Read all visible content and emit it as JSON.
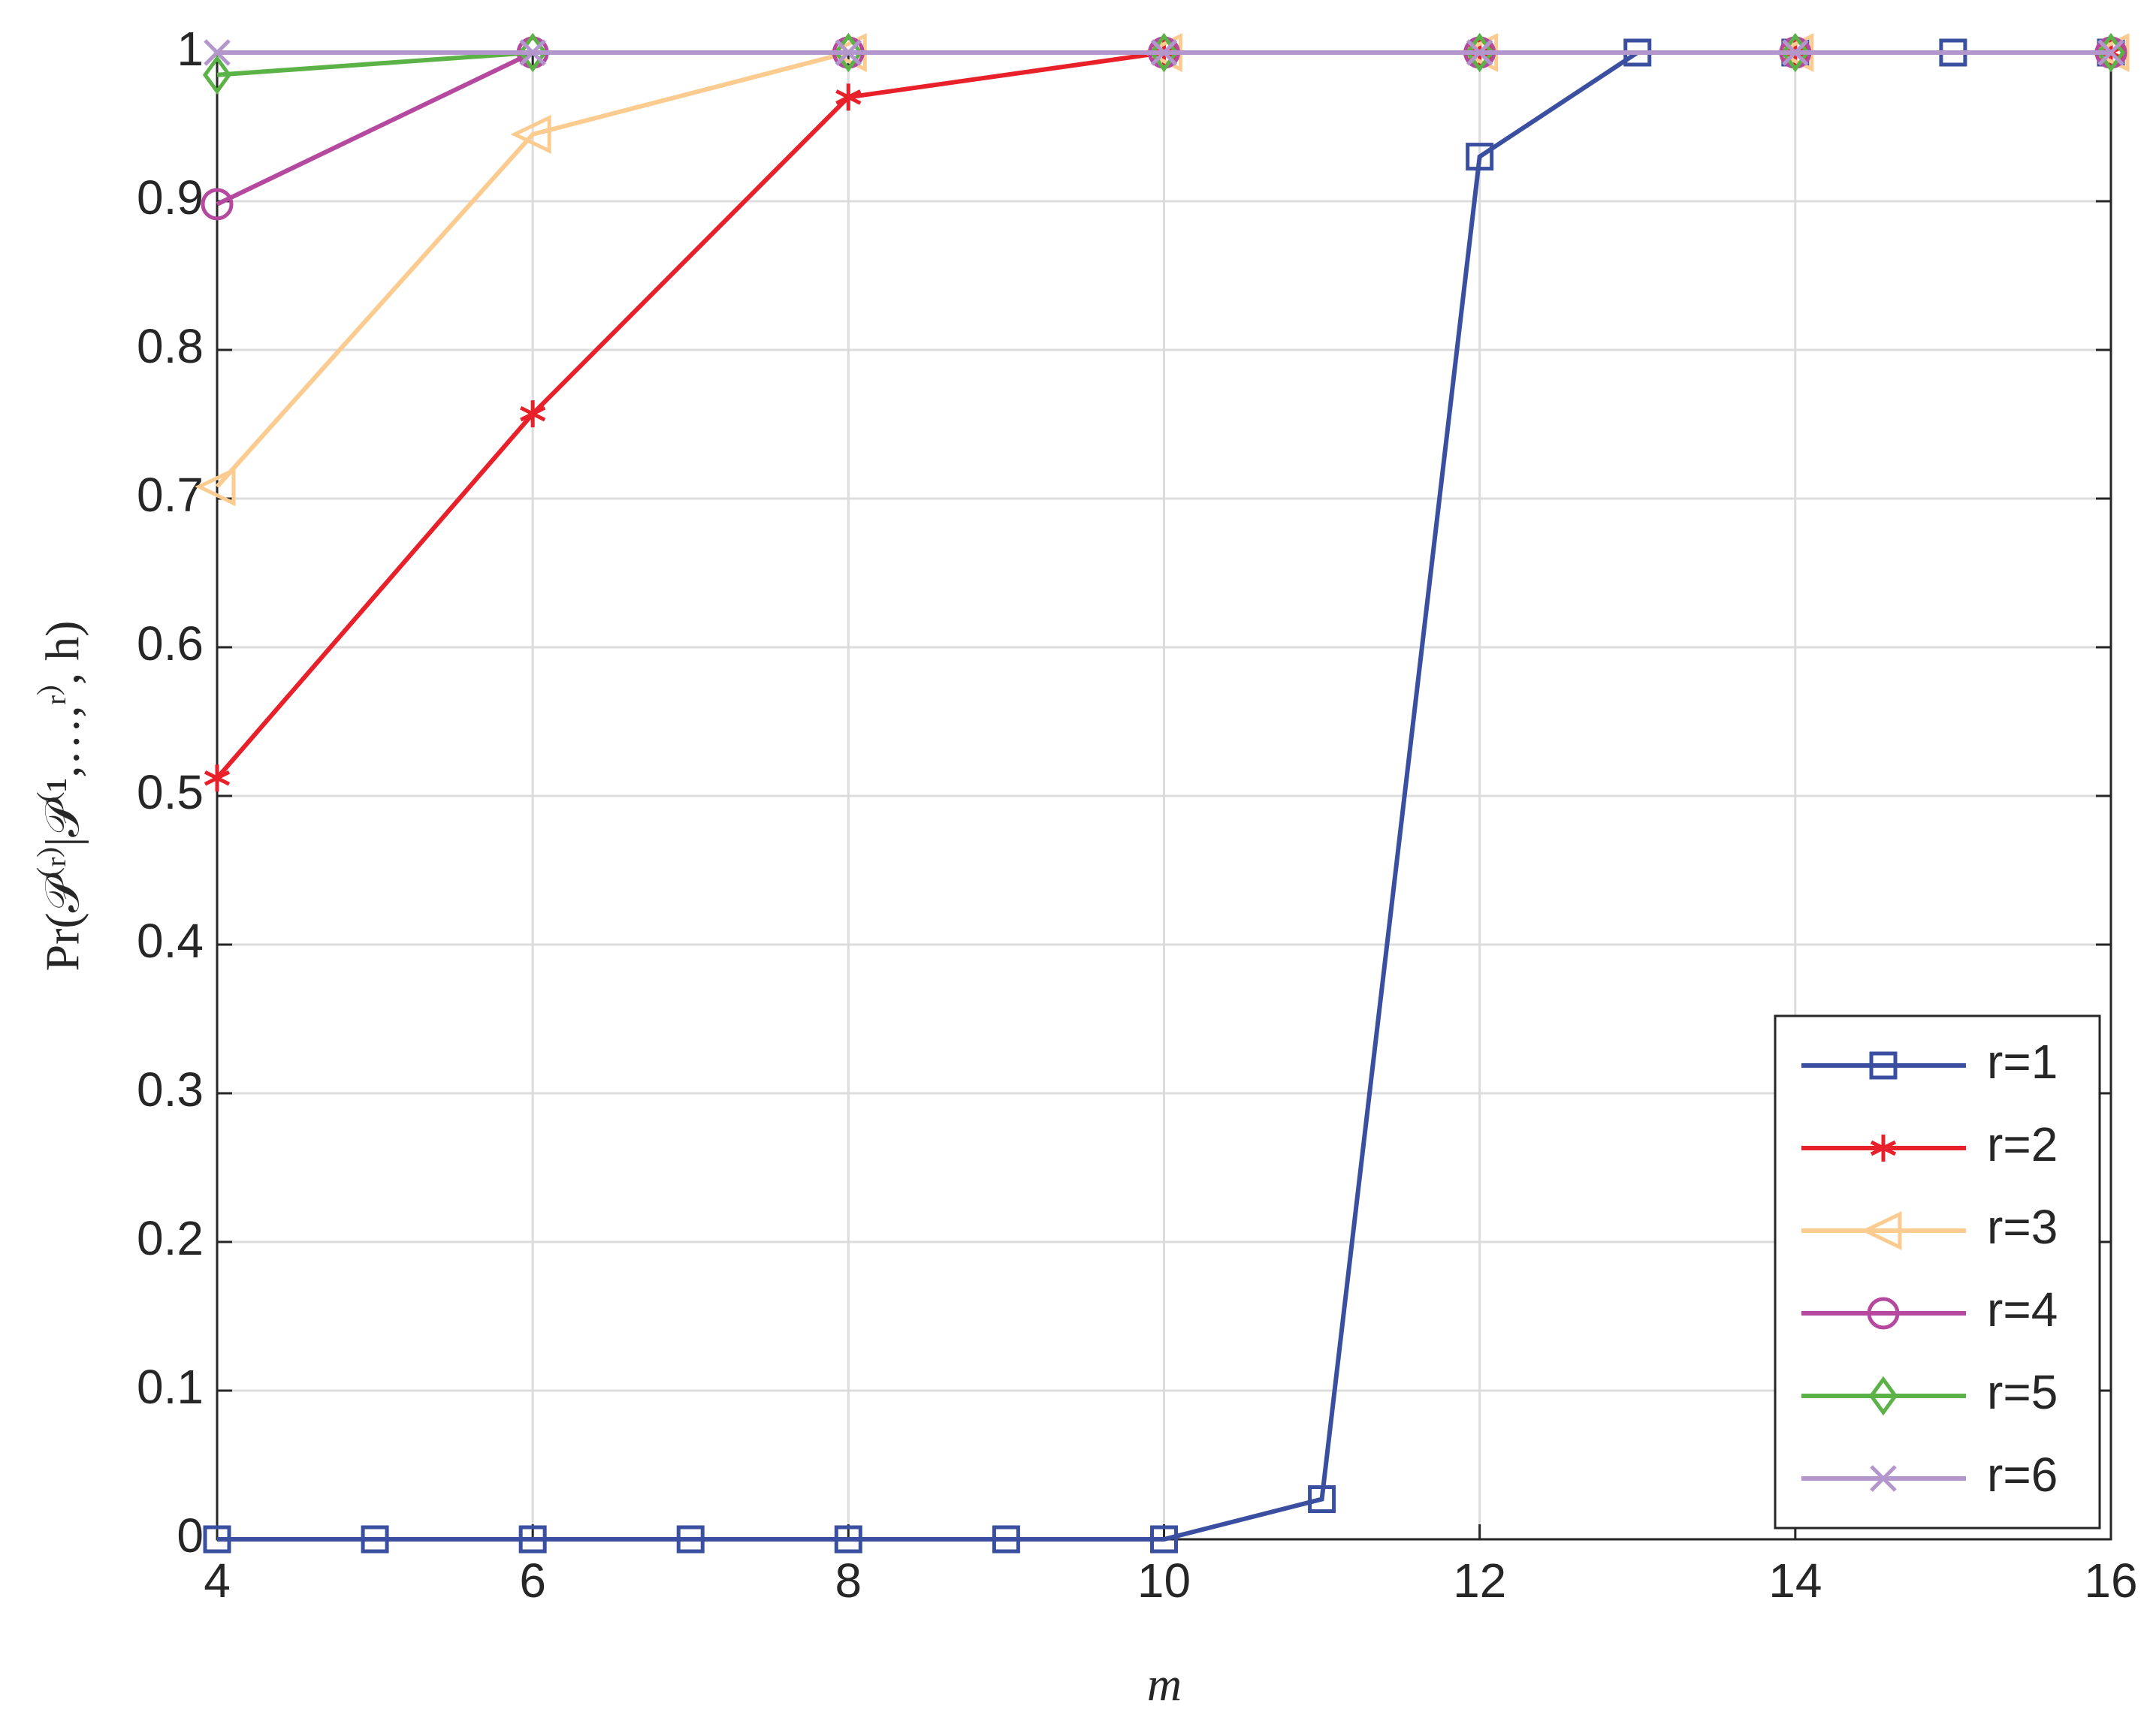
{
  "chart_data": {
    "type": "line",
    "xlabel": "m",
    "ylabel": "Pr(𝒫⁽ʳ⁾|𝒫⁽¹,…,ʳ⁾, h)",
    "xlim": [
      4,
      16
    ],
    "xticks": [
      4,
      6,
      8,
      10,
      12,
      14,
      16
    ],
    "ylim": [
      0,
      1
    ],
    "yticks": [
      0,
      0.1,
      0.2,
      0.3,
      0.4,
      0.5,
      0.6,
      0.7,
      0.8,
      0.9,
      1
    ],
    "grid": true,
    "legend": "lower right",
    "series": [
      {
        "name": "r=1",
        "color": "#3a4fa0",
        "marker": "square",
        "x": [
          4,
          5,
          6,
          7,
          8,
          9,
          10,
          11,
          12,
          13,
          14,
          15,
          16
        ],
        "values": [
          0,
          0,
          0,
          0,
          0,
          0,
          0,
          0.027,
          0.93,
          1,
          1,
          1,
          1
        ]
      },
      {
        "name": "r=2",
        "color": "#e8202a",
        "marker": "asterisk",
        "x": [
          4,
          6,
          8,
          10,
          12,
          14,
          16
        ],
        "values": [
          0.512,
          0.757,
          0.97,
          1,
          1,
          1,
          1
        ]
      },
      {
        "name": "r=3",
        "color": "#fbcb8f",
        "marker": "triangle-left",
        "x": [
          4,
          6,
          8,
          10,
          12,
          14,
          16
        ],
        "values": [
          0.708,
          0.945,
          1,
          1,
          1,
          1,
          1
        ]
      },
      {
        "name": "r=4",
        "color": "#b5489f",
        "marker": "circle",
        "x": [
          4,
          6,
          8,
          10,
          12,
          14,
          16
        ],
        "values": [
          0.898,
          1,
          1,
          1,
          1,
          1,
          1
        ]
      },
      {
        "name": "r=5",
        "color": "#5bb246",
        "marker": "diamond",
        "x": [
          4,
          6,
          8,
          10,
          12,
          14,
          16
        ],
        "values": [
          0.985,
          1,
          1,
          1,
          1,
          1,
          1
        ]
      },
      {
        "name": "r=6",
        "color": "#b397cc",
        "marker": "x",
        "x": [
          4,
          6,
          8,
          10,
          12,
          14,
          16
        ],
        "values": [
          1,
          1,
          1,
          1,
          1,
          1,
          1
        ]
      }
    ]
  }
}
